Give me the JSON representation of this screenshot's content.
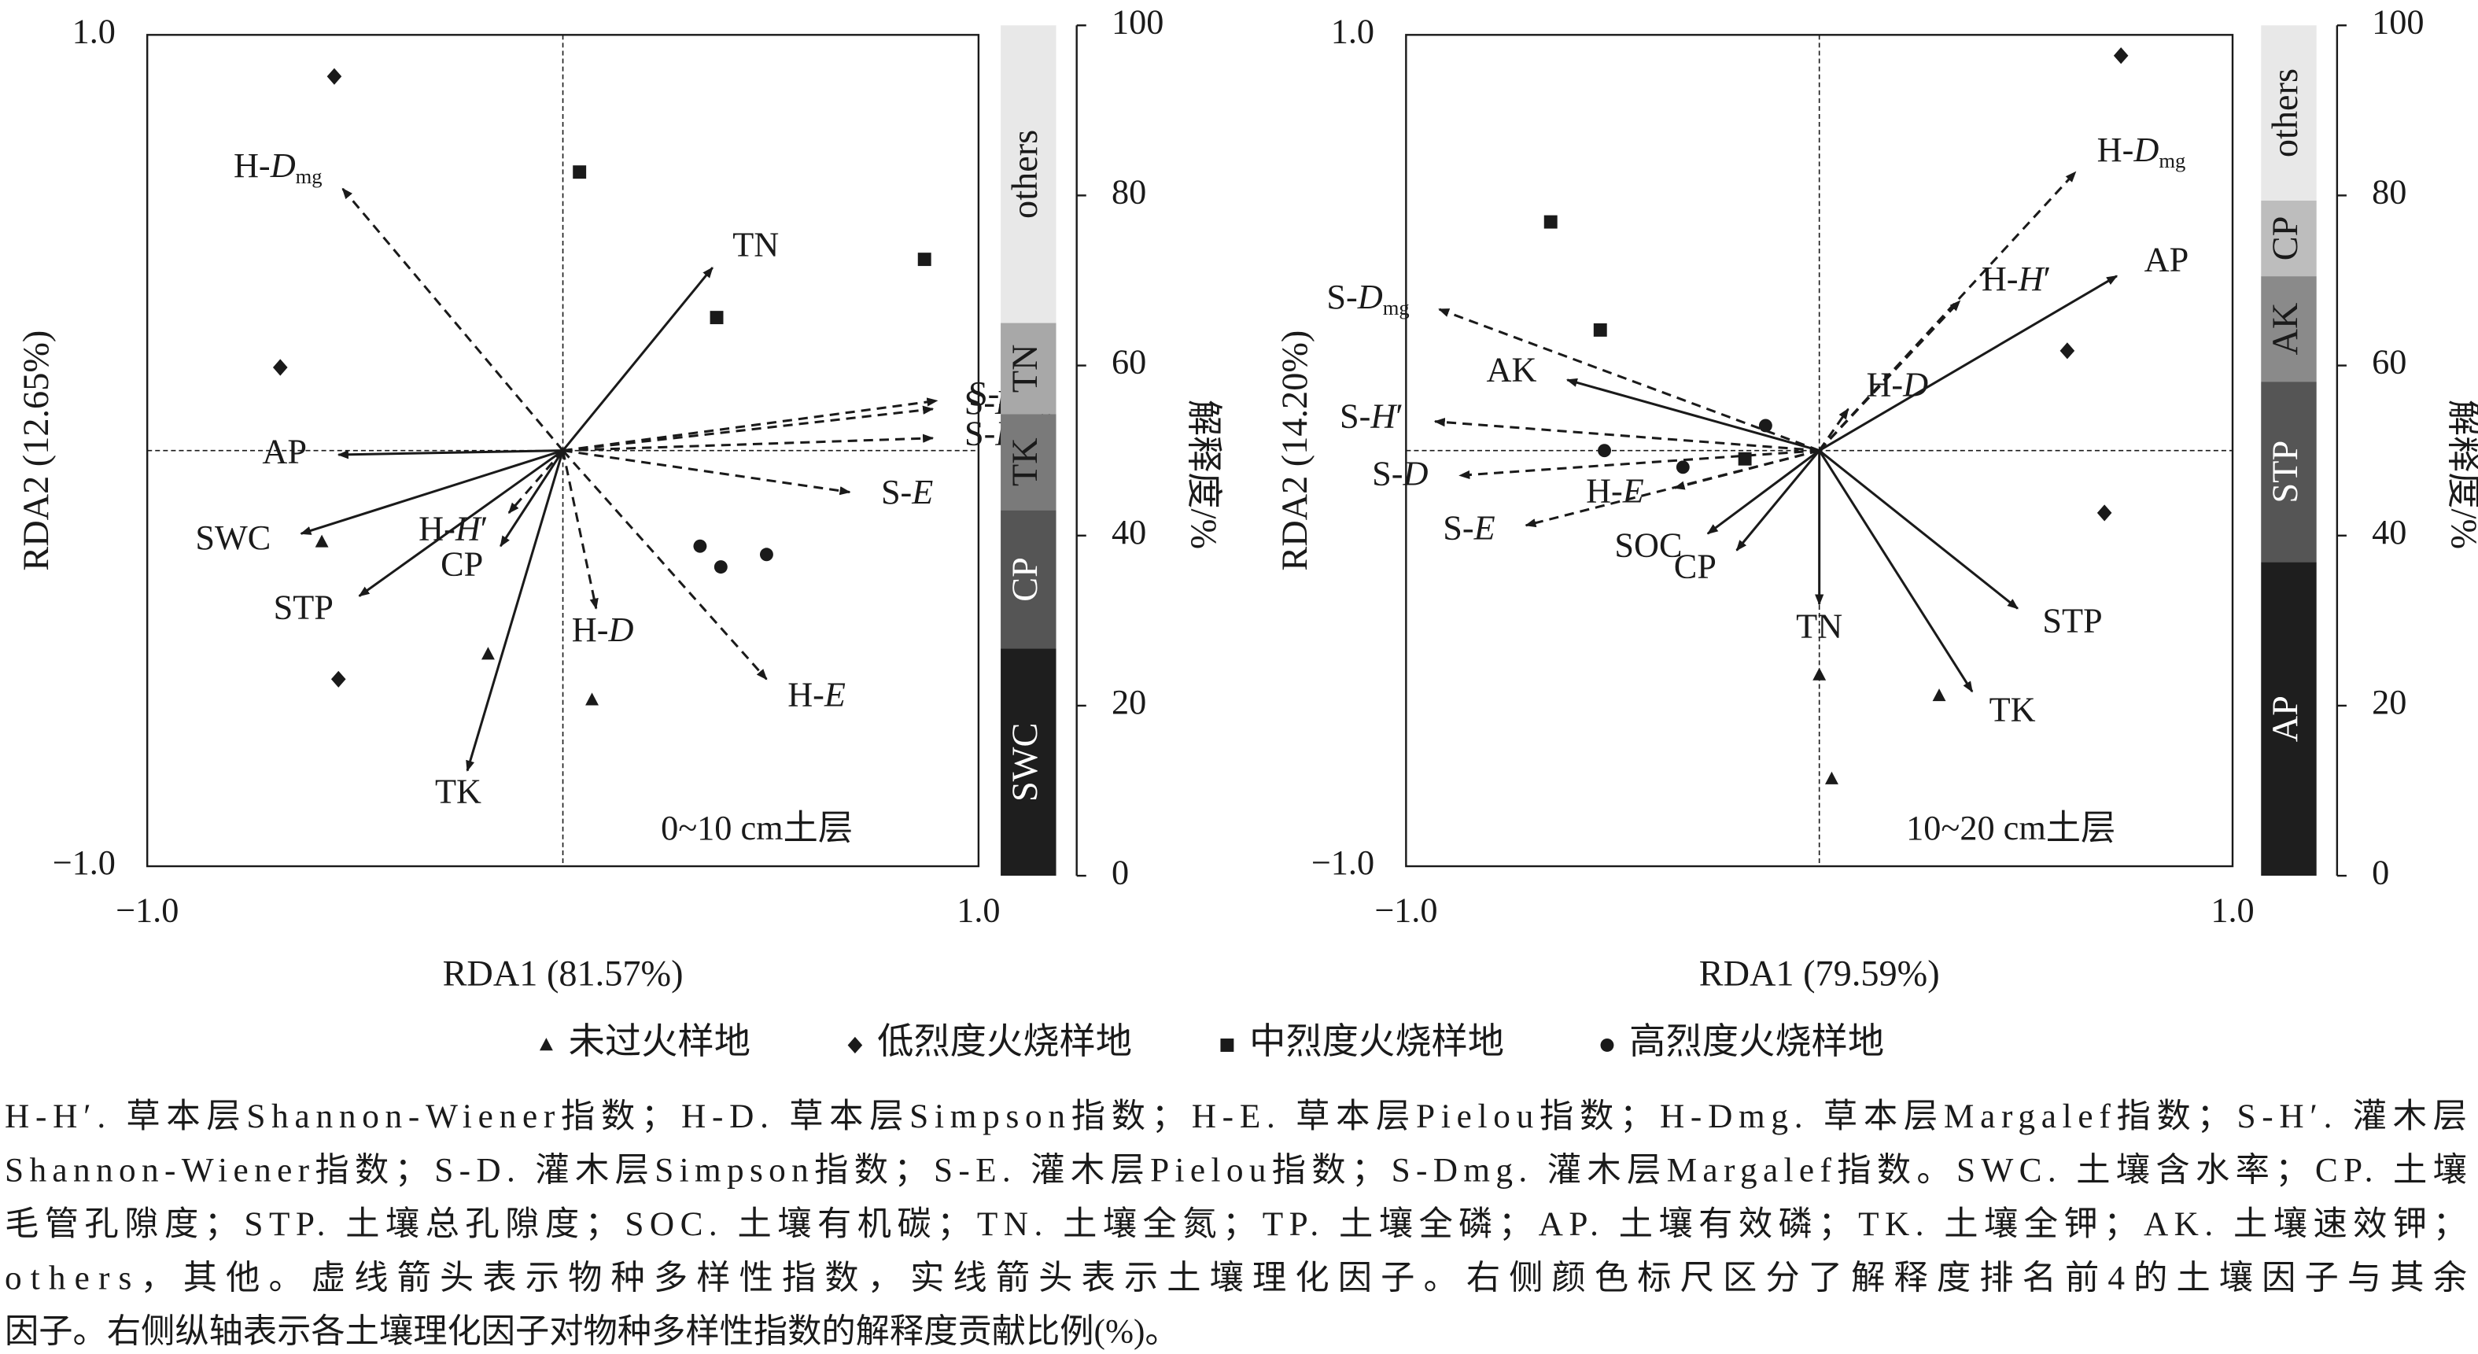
{
  "chart_data": [
    {
      "type": "biplot",
      "xlabel": "RDA1 (81.57%)",
      "ylabel": "RDA2 (12.65%)",
      "annotation": "0~10 cm土层",
      "xlim": [
        -1,
        1
      ],
      "ylim": [
        -1,
        1
      ],
      "xticks": [
        {
          "value": -1,
          "label": "−1.0"
        },
        {
          "value": 1,
          "label": "1.0"
        }
      ],
      "yticks": [
        {
          "value": -1,
          "label": "−1.0"
        },
        {
          "value": 1,
          "label": "1.0"
        }
      ],
      "zero_lines": true,
      "vectors": [
        {
          "label": "H-Dmg",
          "x": -0.53,
          "y": 0.63,
          "style": "dashed"
        },
        {
          "label": "TN",
          "x": 0.36,
          "y": 0.44,
          "style": "solid"
        },
        {
          "label": "S-Dmg",
          "x": 0.9,
          "y": 0.12,
          "style": "dashed"
        },
        {
          "label": "S-H′",
          "x": 0.89,
          "y": 0.03,
          "style": "dashed"
        },
        {
          "label": "S-D",
          "x": 0.89,
          "y": 0.1,
          "style": "dashed"
        },
        {
          "label": "S-E",
          "x": 0.69,
          "y": -0.1,
          "style": "dashed"
        },
        {
          "label": "AP",
          "x": -0.54,
          "y": -0.01,
          "style": "solid"
        },
        {
          "label": "SWC",
          "x": -0.63,
          "y": -0.2,
          "style": "solid"
        },
        {
          "label": "STP",
          "x": -0.49,
          "y": -0.35,
          "style": "solid"
        },
        {
          "label": "CP",
          "x": -0.15,
          "y": -0.23,
          "style": "solid"
        },
        {
          "label": "H-H′",
          "x": -0.13,
          "y": -0.15,
          "style": "dashed"
        },
        {
          "label": "H-D",
          "x": 0.08,
          "y": -0.38,
          "style": "dashed"
        },
        {
          "label": "H-E",
          "x": 0.49,
          "y": -0.55,
          "style": "dashed"
        },
        {
          "label": "TK",
          "x": -0.23,
          "y": -0.77,
          "style": "solid"
        }
      ],
      "series": [
        {
          "name": "未过火样地",
          "marker": "triangle",
          "color": "#1a1a1a",
          "x": [
            -0.58,
            -0.18,
            0.07
          ],
          "y": [
            -0.22,
            -0.49,
            -0.6
          ]
        },
        {
          "name": "低烈度火烧样地",
          "marker": "diamond",
          "color": "#1a1a1a",
          "x": [
            -0.55,
            -0.68,
            -0.54
          ],
          "y": [
            0.9,
            0.2,
            -0.55
          ]
        },
        {
          "name": "中烈度火烧样地",
          "marker": "square",
          "color": "#1a1a1a",
          "x": [
            0.04,
            0.37,
            0.87
          ],
          "y": [
            0.67,
            0.32,
            0.46
          ]
        },
        {
          "name": "高烈度火烧样地",
          "marker": "circle",
          "color": "#1a1a1a",
          "x": [
            0.33,
            0.38,
            0.49
          ],
          "y": [
            -0.23,
            -0.28,
            -0.25
          ]
        }
      ]
    },
    {
      "type": "stacked_bar",
      "ylabel": "解释度/%",
      "ylim": [
        0,
        100
      ],
      "yticks": [
        0,
        20,
        40,
        60,
        80,
        100
      ],
      "series": [
        {
          "name": "SWC",
          "color": "#1e1e1e",
          "values": [
            26.7
          ]
        },
        {
          "name": "CP",
          "color": "#555555",
          "values": [
            16.3
          ]
        },
        {
          "name": "TK",
          "color": "#7a7a7a",
          "values": [
            11.3
          ]
        },
        {
          "name": "TN",
          "color": "#a8a8a8",
          "values": [
            10.7
          ]
        },
        {
          "name": "others",
          "color": "#e8e8e8",
          "values": [
            35.0
          ]
        }
      ]
    },
    {
      "type": "biplot",
      "xlabel": "RDA1 (79.59%)",
      "ylabel": "RDA2 (14.20%)",
      "annotation": "10~20 cm土层",
      "xlim": [
        -1,
        1
      ],
      "ylim": [
        -1,
        1
      ],
      "xticks": [
        {
          "value": -1,
          "label": "−1.0"
        },
        {
          "value": 1,
          "label": "1.0"
        }
      ],
      "yticks": [
        {
          "value": -1,
          "label": "−1.0"
        },
        {
          "value": 1,
          "label": "1.0"
        }
      ],
      "zero_lines": true,
      "vectors": [
        {
          "label": "H-Dmg",
          "x": 0.62,
          "y": 0.67,
          "style": "dashed"
        },
        {
          "label": "AP",
          "x": 0.72,
          "y": 0.42,
          "style": "solid"
        },
        {
          "label": "H-H′",
          "x": 0.34,
          "y": 0.36,
          "style": "dashed"
        },
        {
          "label": "H-D",
          "x": 0.07,
          "y": 0.1,
          "style": "dashed"
        },
        {
          "label": "S-Dmg",
          "x": -0.92,
          "y": 0.34,
          "style": "dashed"
        },
        {
          "label": "AK",
          "x": -0.61,
          "y": 0.17,
          "style": "solid"
        },
        {
          "label": "S-H′",
          "x": -0.93,
          "y": 0.07,
          "style": "dashed"
        },
        {
          "label": "S-D",
          "x": -0.87,
          "y": -0.06,
          "style": "dashed"
        },
        {
          "label": "S-E",
          "x": -0.71,
          "y": -0.18,
          "style": "dashed"
        },
        {
          "label": "H-E",
          "x": -0.35,
          "y": -0.09,
          "style": "dashed"
        },
        {
          "label": "SOC",
          "x": -0.27,
          "y": -0.2,
          "style": "solid"
        },
        {
          "label": "CP",
          "x": -0.2,
          "y": -0.24,
          "style": "solid"
        },
        {
          "label": "TN",
          "x": 0.0,
          "y": -0.37,
          "style": "solid"
        },
        {
          "label": "STP",
          "x": 0.48,
          "y": -0.38,
          "style": "solid"
        },
        {
          "label": "TK",
          "x": 0.37,
          "y": -0.58,
          "style": "solid"
        }
      ],
      "series": [
        {
          "name": "未过火样地",
          "marker": "triangle",
          "color": "#1a1a1a",
          "x": [
            0.0,
            0.03,
            0.29
          ],
          "y": [
            -0.54,
            -0.79,
            -0.59
          ]
        },
        {
          "name": "低烈度火烧样地",
          "marker": "diamond",
          "color": "#1a1a1a",
          "x": [
            0.73,
            0.6,
            0.69
          ],
          "y": [
            0.95,
            0.24,
            -0.15
          ]
        },
        {
          "name": "中烈度火烧样地",
          "marker": "square",
          "color": "#1a1a1a",
          "x": [
            -0.65,
            -0.53,
            -0.18
          ],
          "y": [
            0.55,
            0.29,
            -0.02
          ]
        },
        {
          "name": "高烈度火烧样地",
          "marker": "circle",
          "color": "#1a1a1a",
          "x": [
            -0.13,
            -0.52,
            -0.33
          ],
          "y": [
            0.06,
            0.0,
            -0.04
          ]
        }
      ]
    },
    {
      "type": "stacked_bar",
      "ylabel": "解释度/%",
      "ylim": [
        0,
        100
      ],
      "yticks": [
        0,
        20,
        40,
        60,
        80,
        100
      ],
      "series": [
        {
          "name": "AP",
          "color": "#1e1e1e",
          "values": [
            36.9
          ]
        },
        {
          "name": "STP",
          "color": "#555555",
          "values": [
            21.2
          ]
        },
        {
          "name": "AK",
          "color": "#8a8a8a",
          "values": [
            12.4
          ]
        },
        {
          "name": "CP",
          "color": "#bdbdbd",
          "values": [
            8.9
          ]
        },
        {
          "name": "others",
          "color": "#e8e8e8",
          "values": [
            20.6
          ]
        }
      ]
    }
  ],
  "caption": [
    "H-H′. 草本层Shannon-Wiener指数；H-D. 草本层Simpson指数；H-E. 草本层Pielou指数；H-Dmg. 草本层Margalef指数；S-H′. 灌木层",
    "Shannon-Wiener指数；S-D. 灌木层Simpson指数；S-E. 灌木层Pielou指数；S-Dmg. 灌木层Margalef指数。SWC. 土壤含水率；CP. 土壤",
    "毛管孔隙度；STP. 土壤总孔隙度；SOC. 土壤有机碳；TN. 土壤全氮；TP. 土壤全磷；AP. 土壤有效磷；TK. 土壤全钾；AK. 土壤速效钾；",
    "others，其他。虚线箭头表示物种多样性指数，实线箭头表示土壤理化因子。右侧颜色标尺区分了解释度排名前4的土壤因子与其余",
    "因子。右侧纵轴表示各土壤理化因子对物种多样性指数的解释度贡献比例(%)。"
  ]
}
